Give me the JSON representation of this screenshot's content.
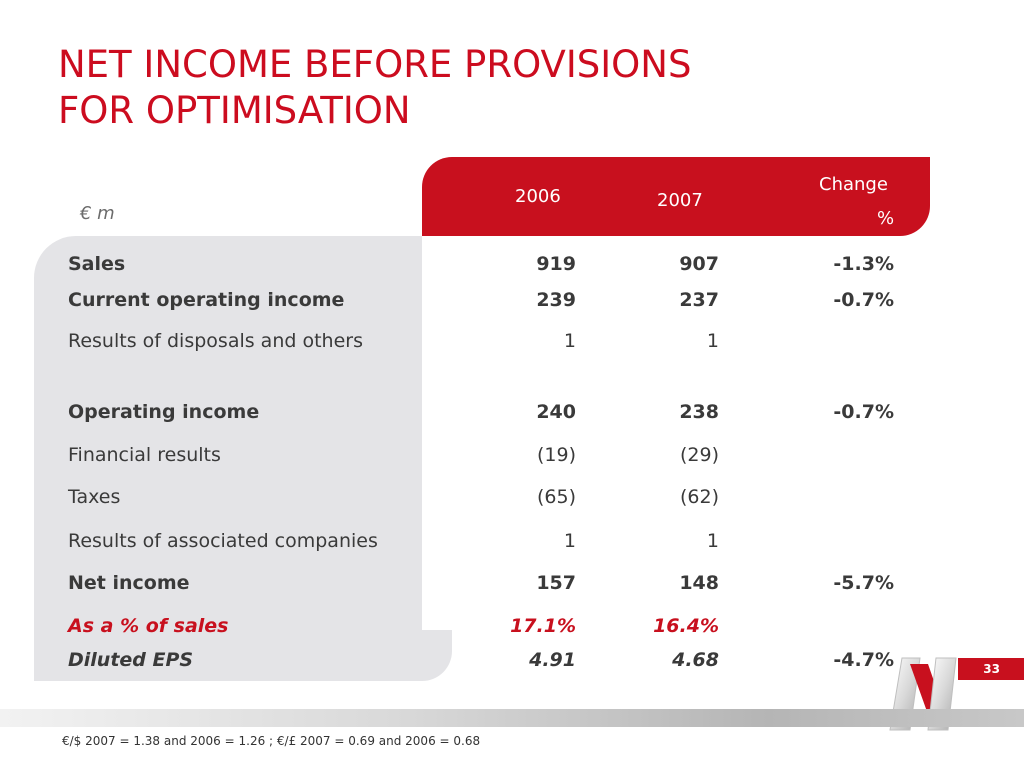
{
  "title_lines": [
    "NET INCOME BEFORE PROVISIONS",
    "FOR OPTIMISATION"
  ],
  "unit": "€ m",
  "columns": {
    "y2006": "2006",
    "y2007": "2007",
    "change_line1": "Change",
    "change_line2": "%"
  },
  "rows": [
    {
      "label": "Sales",
      "v2006": "919",
      "v2007": "907",
      "change": "-1.3%"
    },
    {
      "label": "Current operating income",
      "v2006": "239",
      "v2007": "237",
      "change": "-0.7%"
    },
    {
      "label": "Results of disposals and others",
      "v2006": "1",
      "v2007": "1",
      "change": ""
    },
    {
      "label": "Operating income",
      "v2006": "240",
      "v2007": "238",
      "change": "-0.7%"
    },
    {
      "label": "Financial results",
      "v2006": "(19)",
      "v2007": "(29)",
      "change": ""
    },
    {
      "label": "Taxes",
      "v2006": "(65)",
      "v2007": "(62)",
      "change": ""
    },
    {
      "label": "Results of associated companies",
      "v2006": "1",
      "v2007": "1",
      "change": ""
    },
    {
      "label": "Net income",
      "v2006": "157",
      "v2007": "148",
      "change": "-5.7%"
    },
    {
      "label": "As a % of sales",
      "v2006": "17.1%",
      "v2007": "16.4%",
      "change": ""
    },
    {
      "label": "Diluted EPS",
      "v2006": "4.91",
      "v2007": "4.68",
      "change": "-4.7%"
    }
  ],
  "footnote": "€/$ 2007 = 1.38 and 2006 = 1.26 ; €/£ 2007 = 0.69 and 2006 = 0.68",
  "page_number": "33",
  "colors": {
    "accent": "#c8101e",
    "panel": "#e4e4e7",
    "text": "#3a3a3a"
  },
  "icons": {
    "logo": "brand-logo-icon"
  }
}
